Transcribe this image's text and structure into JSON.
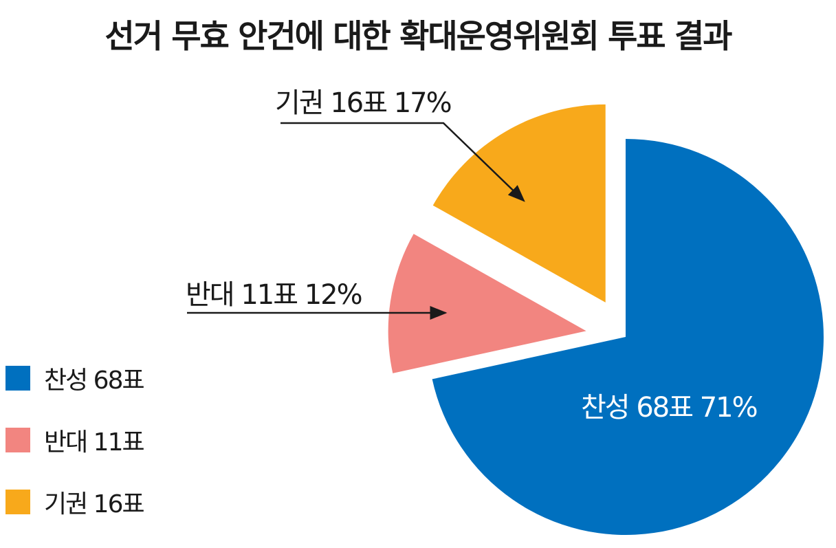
{
  "chart_data": {
    "type": "pie",
    "title": "선거 무효 안건에 대한 확대운영위원회 투표 결과",
    "slices": [
      {
        "name": "찬성",
        "votes": 68,
        "percent": 71,
        "color": "#0070bf",
        "label": "찬성 68표 71%",
        "legend": "찬성 68표"
      },
      {
        "name": "반대",
        "votes": 11,
        "percent": 12,
        "color": "#f28580",
        "label": "반대 11표 12%",
        "legend": "반대 11표"
      },
      {
        "name": "기권",
        "votes": 16,
        "percent": 17,
        "color": "#f8a91b",
        "label": "기권 16표 17%",
        "legend": "기권 16표"
      }
    ],
    "legend_position": "left",
    "exploded": true
  }
}
